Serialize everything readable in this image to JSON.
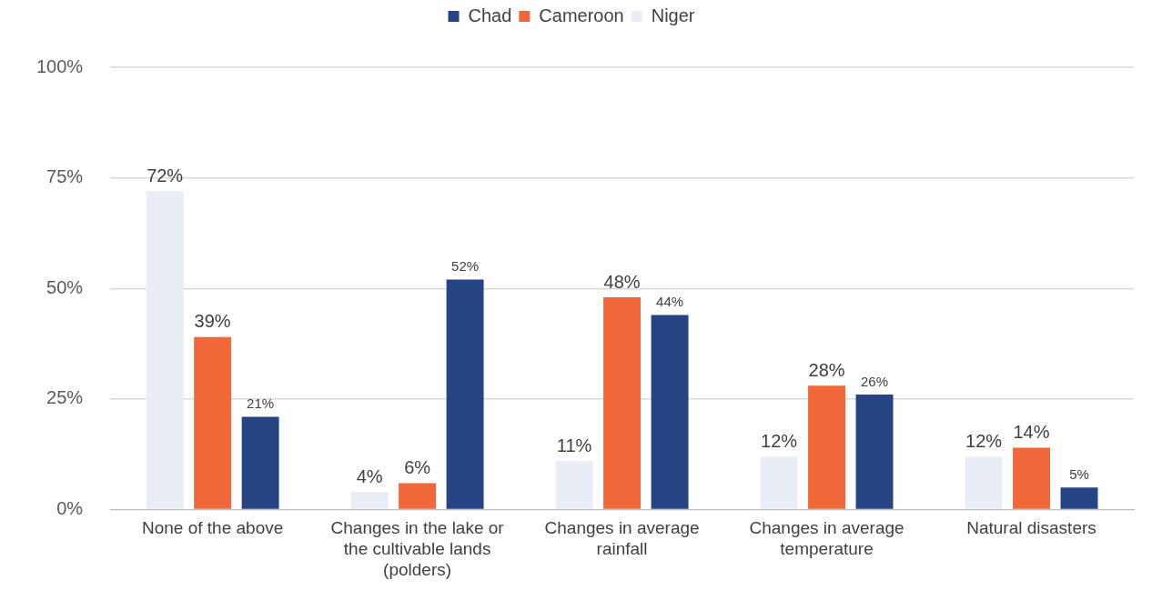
{
  "chart_data": {
    "type": "bar",
    "categories": [
      "None of the above",
      "Changes in the lake or the cultivable lands (polders)",
      "Changes in average rainfall",
      "Changes in average temperature",
      "Natural disasters"
    ],
    "series": [
      {
        "name": "Niger",
        "color": "#e9eef6",
        "values": [
          72,
          4,
          11,
          12,
          12
        ],
        "value_labels": [
          "72%",
          "4%",
          "11%",
          "12%",
          "12%"
        ]
      },
      {
        "name": "Cameroon",
        "color": "#f0673a",
        "values": [
          39,
          6,
          48,
          28,
          14
        ],
        "value_labels": [
          "39%",
          "6%",
          "48%",
          "28%",
          "14%"
        ]
      },
      {
        "name": "Chad",
        "color": "#264483",
        "values": [
          21,
          52,
          44,
          26,
          5
        ],
        "value_labels": [
          "21%",
          "52%",
          "44%",
          "26%",
          "5%"
        ]
      }
    ],
    "ylim": [
      0,
      100
    ],
    "yticks": [
      {
        "value": 0,
        "label": "0%"
      },
      {
        "value": 25,
        "label": "25%"
      },
      {
        "value": 50,
        "label": "50%"
      },
      {
        "value": 75,
        "label": "75%"
      },
      {
        "value": 100,
        "label": "100%"
      }
    ],
    "grid": "y",
    "legend": "top"
  }
}
